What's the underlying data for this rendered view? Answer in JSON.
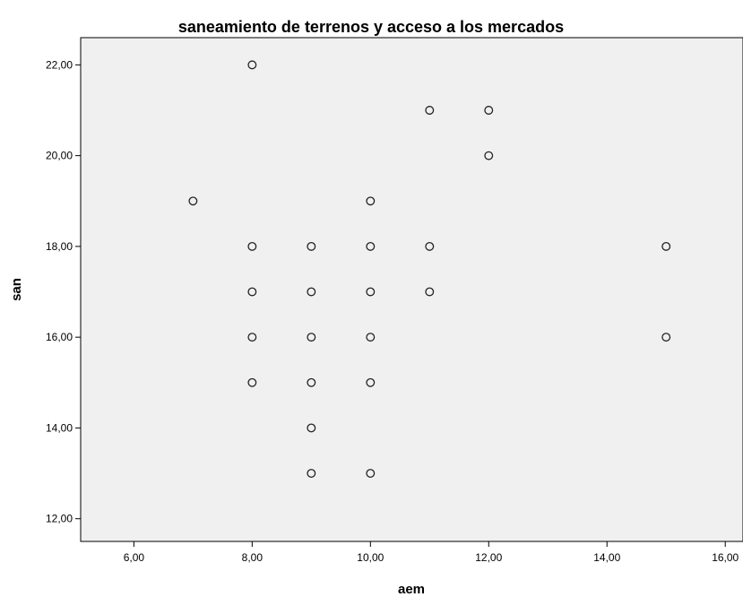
{
  "chart_data": {
    "type": "scatter",
    "title": "saneamiento de terrenos y acceso a los mercados",
    "xlabel": "aem",
    "ylabel": "san",
    "xlim": [
      5.1,
      16.3
    ],
    "ylim": [
      11.5,
      22.6
    ],
    "x_ticks": [
      "6,00",
      "8,00",
      "10,00",
      "12,00",
      "14,00",
      "16,00"
    ],
    "y_ticks": [
      "12,00",
      "14,00",
      "16,00",
      "18,00",
      "20,00",
      "22,00"
    ],
    "x_tick_values": [
      6,
      8,
      10,
      12,
      14,
      16
    ],
    "y_tick_values": [
      12,
      14,
      16,
      18,
      20,
      22
    ],
    "plot_background": "#f0f0f0",
    "marker_color": "#222222",
    "grid": false,
    "points": [
      {
        "x": 7,
        "y": 19
      },
      {
        "x": 8,
        "y": 22
      },
      {
        "x": 8,
        "y": 18
      },
      {
        "x": 8,
        "y": 17
      },
      {
        "x": 8,
        "y": 16
      },
      {
        "x": 8,
        "y": 15
      },
      {
        "x": 9,
        "y": 18
      },
      {
        "x": 9,
        "y": 17
      },
      {
        "x": 9,
        "y": 16
      },
      {
        "x": 9,
        "y": 15
      },
      {
        "x": 9,
        "y": 14
      },
      {
        "x": 9,
        "y": 13
      },
      {
        "x": 10,
        "y": 19
      },
      {
        "x": 10,
        "y": 18
      },
      {
        "x": 10,
        "y": 17
      },
      {
        "x": 10,
        "y": 16
      },
      {
        "x": 10,
        "y": 15
      },
      {
        "x": 10,
        "y": 13
      },
      {
        "x": 11,
        "y": 21
      },
      {
        "x": 11,
        "y": 18
      },
      {
        "x": 11,
        "y": 17
      },
      {
        "x": 12,
        "y": 21
      },
      {
        "x": 12,
        "y": 20
      },
      {
        "x": 15,
        "y": 18
      },
      {
        "x": 15,
        "y": 16
      }
    ]
  }
}
